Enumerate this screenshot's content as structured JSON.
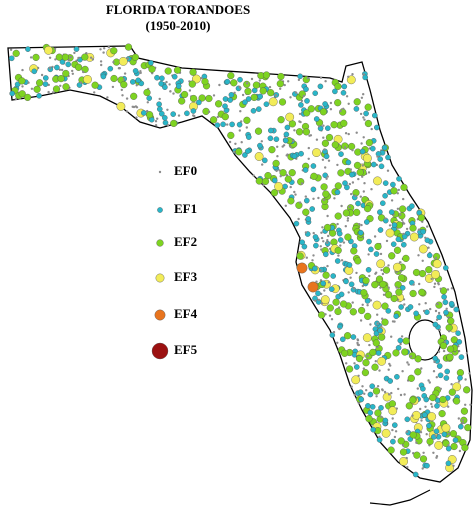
{
  "title": "FLORIDA TORANDOES",
  "subtitle": "(1950-2010)",
  "legend": [
    {
      "label": "EF0",
      "color": "#8c8c8c"
    },
    {
      "label": "EF1",
      "color": "#29b6c8"
    },
    {
      "label": "EF2",
      "color": "#7ed321"
    },
    {
      "label": "EF3",
      "color": "#f2ec58"
    },
    {
      "label": "EF4",
      "color": "#e8741e"
    },
    {
      "label": "EF5",
      "color": "#9b1111"
    }
  ]
}
